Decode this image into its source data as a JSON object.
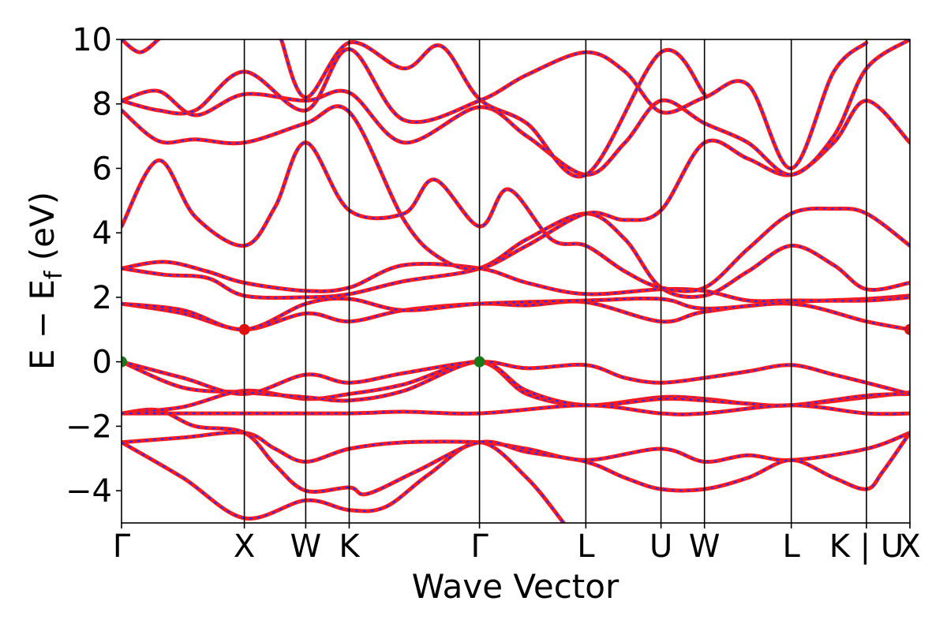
{
  "chart_data": {
    "type": "line",
    "title": "",
    "xlabel": "Wave Vector",
    "ylabel_main": "E − E",
    "ylabel_sub": "f",
    "ylabel_unit": " (eV)",
    "ylim": [
      -5,
      10
    ],
    "yticks": [
      -4,
      -2,
      0,
      2,
      4,
      6,
      8,
      10
    ],
    "ytick_labels": [
      "−4",
      "−2",
      "0",
      "2",
      "4",
      "6",
      "8",
      "10"
    ],
    "kpath": [
      {
        "label": "Γ",
        "x": 0.0
      },
      {
        "label": "X",
        "x": 1.0
      },
      {
        "label": "W",
        "x": 1.5
      },
      {
        "label": "K",
        "x": 1.854
      },
      {
        "label": "Γ",
        "x": 2.915
      },
      {
        "label": "L",
        "x": 3.781
      },
      {
        "label": "U",
        "x": 4.393
      },
      {
        "label": "W",
        "x": 4.747
      },
      {
        "label": "L",
        "x": 5.454
      },
      {
        "label": "K | U",
        "x": 6.066
      },
      {
        "label": "X",
        "x": 6.42
      }
    ],
    "colors": {
      "band_red": "#ff1a1a",
      "band_blue": "#2a2aff",
      "cbm_marker": "#e01010",
      "vbm_marker": "#1a7a1a"
    },
    "markers": [
      {
        "kind": "VBM",
        "x": 0.0,
        "y": 0.0,
        "color": "#1a7a1a"
      },
      {
        "kind": "VBM",
        "x": 2.915,
        "y": 0.0,
        "color": "#1a7a1a"
      },
      {
        "kind": "CBM",
        "x": 1.0,
        "y": 1.0,
        "color": "#e01010"
      },
      {
        "kind": "CBM",
        "x": 6.42,
        "y": 1.0,
        "color": "#e01010"
      }
    ],
    "series": [
      {
        "values": [
          [
            0,
            -2.5
          ],
          [
            0.5,
            -2.35
          ],
          [
            1.0,
            -2.2
          ],
          [
            1.25,
            -2.7
          ],
          [
            1.5,
            -3.1
          ],
          [
            1.854,
            -2.7
          ],
          [
            2.3,
            -2.5
          ],
          [
            2.915,
            -2.5
          ],
          [
            3.3,
            -2.7
          ],
          [
            3.781,
            -3.05
          ],
          [
            4.393,
            -2.7
          ],
          [
            4.747,
            -3.1
          ],
          [
            5.1,
            -2.9
          ],
          [
            5.454,
            -3.05
          ],
          [
            6.066,
            -2.7
          ],
          [
            6.42,
            -2.2
          ]
        ]
      },
      {
        "values": [
          [
            0,
            -2.5
          ],
          [
            0.5,
            -3.6
          ],
          [
            1.0,
            -4.85
          ],
          [
            1.5,
            -4.3
          ],
          [
            1.854,
            -4.6
          ],
          [
            2.15,
            -4.5
          ],
          [
            2.5,
            -3.5
          ],
          [
            2.915,
            -2.5
          ],
          [
            3.3,
            -3.6
          ],
          [
            3.6,
            -5.0
          ]
        ]
      },
      {
        "values": [
          [
            0,
            -1.6
          ],
          [
            0.3,
            -1.5
          ],
          [
            0.6,
            -2.0
          ],
          [
            1.0,
            -2.2
          ],
          [
            1.25,
            -3.2
          ],
          [
            1.5,
            -4.0
          ],
          [
            1.854,
            -3.9
          ],
          [
            2.0,
            -4.1
          ],
          [
            2.4,
            -3.4
          ],
          [
            2.915,
            -2.5
          ],
          [
            3.3,
            -2.8
          ],
          [
            3.781,
            -3.1
          ],
          [
            4.1,
            -3.6
          ],
          [
            4.393,
            -3.95
          ],
          [
            4.747,
            -3.95
          ],
          [
            5.1,
            -3.6
          ],
          [
            5.454,
            -3.05
          ],
          [
            5.8,
            -3.6
          ],
          [
            6.066,
            -3.95
          ],
          [
            6.2,
            -3.4
          ],
          [
            6.42,
            -2.2
          ]
        ]
      },
      {
        "values": [
          [
            0,
            -1.6
          ],
          [
            0.5,
            -1.4
          ],
          [
            1.0,
            -0.9
          ],
          [
            1.5,
            -1.15
          ],
          [
            1.854,
            -1.0
          ],
          [
            2.3,
            -0.7
          ],
          [
            2.915,
            0.0
          ],
          [
            3.3,
            -1.0
          ],
          [
            3.781,
            -1.35
          ],
          [
            4.393,
            -1.1
          ],
          [
            4.747,
            -1.15
          ],
          [
            5.1,
            -1.3
          ],
          [
            5.454,
            -1.35
          ],
          [
            6.066,
            -1.1
          ],
          [
            6.42,
            -0.95
          ]
        ]
      },
      {
        "values": [
          [
            0,
            0.0
          ],
          [
            0.5,
            -0.8
          ],
          [
            1.0,
            -0.95
          ],
          [
            1.5,
            -1.1
          ],
          [
            1.854,
            -1.2
          ],
          [
            2.3,
            -0.9
          ],
          [
            2.915,
            0.0
          ],
          [
            3.3,
            -0.9
          ],
          [
            3.781,
            -1.35
          ],
          [
            4.393,
            -1.15
          ],
          [
            4.747,
            -1.2
          ],
          [
            5.1,
            -1.3
          ],
          [
            5.454,
            -1.35
          ],
          [
            6.066,
            -1.05
          ],
          [
            6.42,
            -1.0
          ]
        ]
      },
      {
        "values": [
          [
            0,
            0.0
          ],
          [
            0.5,
            -0.5
          ],
          [
            1.0,
            -1.0
          ],
          [
            1.5,
            -0.4
          ],
          [
            1.854,
            -0.65
          ],
          [
            2.3,
            -0.35
          ],
          [
            2.915,
            0.0
          ],
          [
            3.3,
            -0.2
          ],
          [
            3.781,
            -0.1
          ],
          [
            4.1,
            -0.5
          ],
          [
            4.393,
            -0.65
          ],
          [
            4.747,
            -0.5
          ],
          [
            5.1,
            -0.3
          ],
          [
            5.454,
            -0.1
          ],
          [
            5.8,
            -0.4
          ],
          [
            6.066,
            -0.65
          ],
          [
            6.42,
            -1.0
          ]
        ]
      },
      {
        "values": [
          [
            0,
            -1.6
          ],
          [
            1.0,
            -1.6
          ],
          [
            1.854,
            -1.6
          ],
          [
            2.3,
            -1.55
          ],
          [
            2.915,
            -1.6
          ],
          [
            3.781,
            -1.35
          ],
          [
            4.393,
            -1.6
          ],
          [
            4.747,
            -1.6
          ],
          [
            5.454,
            -1.35
          ],
          [
            6.066,
            -1.6
          ],
          [
            6.42,
            -1.6
          ]
        ]
      },
      {
        "values": [
          [
            0,
            1.8
          ],
          [
            0.5,
            1.5
          ],
          [
            1.0,
            1.0
          ],
          [
            1.5,
            1.5
          ],
          [
            1.854,
            1.25
          ],
          [
            2.3,
            1.6
          ],
          [
            2.915,
            1.8
          ],
          [
            3.3,
            1.75
          ],
          [
            3.781,
            1.85
          ],
          [
            4.393,
            1.25
          ],
          [
            4.747,
            1.55
          ],
          [
            5.454,
            1.8
          ],
          [
            6.066,
            1.25
          ],
          [
            6.42,
            1.0
          ]
        ]
      },
      {
        "values": [
          [
            0,
            1.8
          ],
          [
            0.5,
            1.6
          ],
          [
            1.0,
            1.0
          ],
          [
            1.5,
            1.8
          ],
          [
            1.854,
            1.95
          ],
          [
            2.3,
            1.6
          ],
          [
            2.915,
            1.8
          ],
          [
            3.781,
            1.9
          ],
          [
            4.393,
            1.95
          ],
          [
            4.747,
            1.65
          ],
          [
            5.454,
            1.85
          ],
          [
            6.066,
            1.95
          ],
          [
            6.42,
            2.05
          ]
        ]
      },
      {
        "values": [
          [
            0,
            2.9
          ],
          [
            0.35,
            3.1
          ],
          [
            0.7,
            2.8
          ],
          [
            1.0,
            2.45
          ],
          [
            1.5,
            2.2
          ],
          [
            1.854,
            2.3
          ],
          [
            2.3,
            3.0
          ],
          [
            2.915,
            2.9
          ],
          [
            3.3,
            2.45
          ],
          [
            3.781,
            2.1
          ],
          [
            4.393,
            2.25
          ],
          [
            4.747,
            2.2
          ],
          [
            5.1,
            1.9
          ],
          [
            5.454,
            1.9
          ],
          [
            6.066,
            1.9
          ],
          [
            6.42,
            2.0
          ]
        ]
      },
      {
        "values": [
          [
            0,
            2.9
          ],
          [
            0.35,
            2.7
          ],
          [
            0.7,
            2.6
          ],
          [
            1.0,
            2.05
          ],
          [
            1.5,
            2.0
          ],
          [
            1.854,
            2.1
          ],
          [
            2.3,
            2.5
          ],
          [
            2.915,
            2.9
          ],
          [
            3.3,
            3.8
          ],
          [
            3.781,
            4.6
          ],
          [
            4.1,
            3.8
          ],
          [
            4.393,
            2.3
          ],
          [
            4.747,
            2.05
          ],
          [
            5.1,
            2.8
          ],
          [
            5.454,
            3.6
          ],
          [
            5.8,
            3.0
          ],
          [
            6.066,
            2.25
          ],
          [
            6.42,
            2.45
          ]
        ]
      },
      {
        "values": [
          [
            0,
            4.2
          ],
          [
            0.3,
            6.25
          ],
          [
            0.6,
            4.5
          ],
          [
            1.0,
            3.6
          ],
          [
            1.25,
            4.8
          ],
          [
            1.5,
            6.8
          ],
          [
            1.854,
            4.7
          ],
          [
            2.3,
            4.6
          ],
          [
            2.55,
            5.65
          ],
          [
            2.915,
            4.2
          ],
          [
            3.15,
            5.35
          ],
          [
            3.5,
            3.8
          ],
          [
            3.781,
            3.6
          ],
          [
            4.1,
            2.8
          ],
          [
            4.393,
            2.3
          ],
          [
            4.747,
            2.3
          ],
          [
            5.1,
            3.5
          ],
          [
            5.454,
            4.6
          ],
          [
            5.8,
            4.75
          ],
          [
            6.066,
            4.6
          ],
          [
            6.42,
            3.6
          ]
        ]
      },
      {
        "values": [
          [
            0,
            7.8
          ],
          [
            0.3,
            6.85
          ],
          [
            0.6,
            6.9
          ],
          [
            1.0,
            6.8
          ],
          [
            1.5,
            7.4
          ],
          [
            1.854,
            7.75
          ],
          [
            2.3,
            4.4
          ],
          [
            2.6,
            3.2
          ],
          [
            2.915,
            2.9
          ],
          [
            3.3,
            3.6
          ],
          [
            3.781,
            4.6
          ],
          [
            4.1,
            4.4
          ],
          [
            4.393,
            4.7
          ],
          [
            4.747,
            6.8
          ],
          [
            5.1,
            6.3
          ],
          [
            5.454,
            5.8
          ],
          [
            5.8,
            6.8
          ],
          [
            6.066,
            8.1
          ],
          [
            6.42,
            6.8
          ]
        ]
      },
      {
        "values": [
          [
            0,
            8.1
          ],
          [
            0.3,
            8.4
          ],
          [
            0.6,
            7.65
          ],
          [
            1.0,
            8.3
          ],
          [
            1.5,
            8.1
          ],
          [
            1.854,
            8.35
          ],
          [
            2.3,
            6.8
          ],
          [
            2.915,
            7.9
          ],
          [
            3.3,
            7.0
          ],
          [
            3.781,
            5.8
          ],
          [
            4.1,
            6.8
          ],
          [
            4.393,
            8.1
          ],
          [
            4.747,
            7.4
          ],
          [
            5.1,
            6.8
          ],
          [
            5.454,
            5.8
          ],
          [
            5.8,
            7.0
          ],
          [
            6.066,
            9.1
          ],
          [
            6.42,
            10.0
          ]
        ]
      },
      {
        "values": [
          [
            0,
            8.1
          ],
          [
            0.3,
            7.8
          ],
          [
            0.6,
            7.8
          ],
          [
            1.0,
            9.0
          ],
          [
            1.5,
            7.8
          ],
          [
            1.854,
            9.7
          ],
          [
            2.3,
            7.5
          ],
          [
            2.915,
            8.1
          ],
          [
            3.3,
            8.9
          ],
          [
            3.781,
            9.6
          ],
          [
            4.1,
            9.0
          ],
          [
            4.393,
            7.75
          ],
          [
            4.747,
            8.2
          ],
          [
            5.1,
            8.6
          ],
          [
            5.454,
            6.0
          ],
          [
            5.8,
            9.0
          ],
          [
            6.066,
            9.9
          ]
        ]
      },
      {
        "values": [
          [
            0,
            10.0
          ],
          [
            0.15,
            9.6
          ],
          [
            0.3,
            10.0
          ]
        ]
      },
      {
        "values": [
          [
            1.3,
            10.0
          ],
          [
            1.5,
            8.2
          ],
          [
            1.854,
            9.9
          ],
          [
            2.3,
            9.1
          ],
          [
            2.6,
            9.8
          ],
          [
            2.915,
            8.15
          ],
          [
            3.3,
            7.4
          ],
          [
            3.781,
            5.8
          ],
          [
            4.393,
            9.6
          ],
          [
            4.747,
            8.3
          ]
        ]
      }
    ]
  }
}
